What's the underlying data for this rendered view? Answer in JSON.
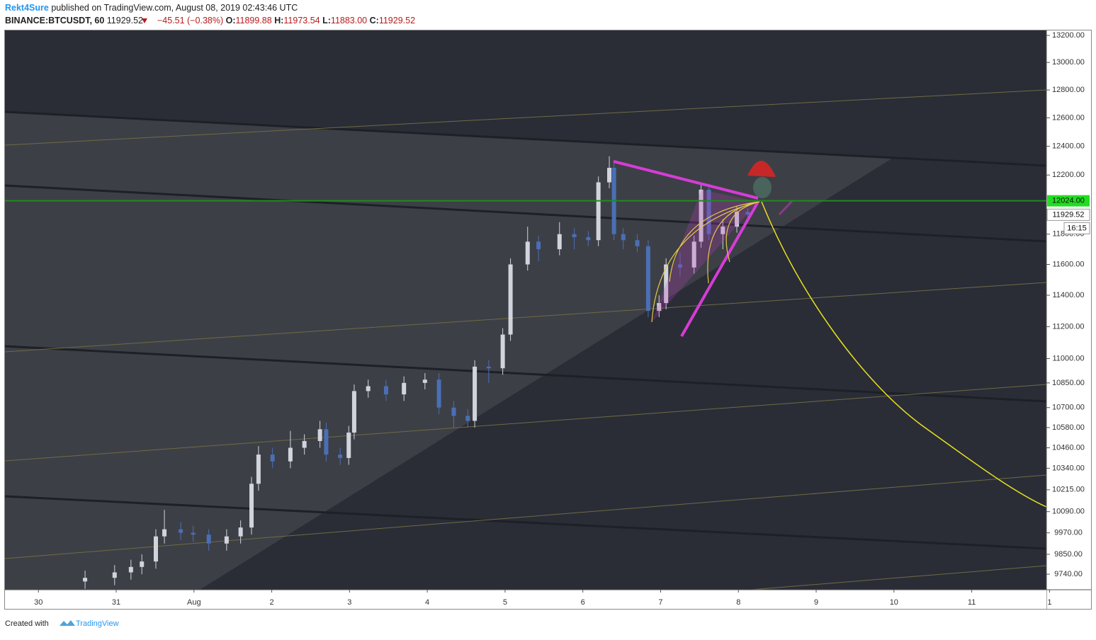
{
  "header": {
    "author": "Rekt4Sure",
    "published": "published on TradingView.com, August 08, 2019 02:43:46 UTC",
    "symbol": "BINANCE:BTCUSDT, 60",
    "last": "11929.52",
    "change": "−45.51 (−0.38%)",
    "o_label": "O:",
    "open": "11899.88",
    "h_label": "H:",
    "high": "11973.54",
    "l_label": "L:",
    "low": "11883.00",
    "c_label": "C:",
    "close": "11929.52"
  },
  "footer": {
    "created": "Created with",
    "brand": "TradingView"
  },
  "chart_data": {
    "type": "candlestick",
    "log_scale": true,
    "grid": false,
    "up_color": "#d1d4dc",
    "down_color": "#4a6fb5",
    "x": [
      0.6,
      0.98,
      1.19,
      1.33,
      1.51,
      1.62,
      1.83,
      1.99,
      2.19,
      2.42,
      2.6,
      2.74,
      2.83,
      3.01,
      3.24,
      3.42,
      3.62,
      3.7,
      3.88,
      3.99,
      4.06,
      4.24,
      4.47,
      4.7,
      4.97,
      5.15,
      5.34,
      5.52,
      5.61,
      5.79,
      5.97,
      6.07,
      6.29,
      6.43,
      6.7,
      6.89,
      7.07,
      7.2,
      7.34,
      7.4,
      7.52,
      7.7,
      7.84,
      7.98,
      8.07,
      8.25,
      8.43,
      8.52,
      8.62,
      8.8,
      8.98,
      9.12
    ],
    "open": [
      9700,
      9720,
      9750,
      9780,
      9810,
      9950,
      9990,
      9970,
      9960,
      9910,
      9950,
      10000,
      10250,
      10420,
      10380,
      10460,
      10500,
      10570,
      10420,
      10400,
      10550,
      10800,
      10830,
      10780,
      10850,
      10870,
      10700,
      10650,
      10620,
      10950,
      10940,
      11150,
      11600,
      11750,
      11700,
      11800,
      11780,
      11760,
      12150,
      12250,
      11800,
      11760,
      11720,
      11300,
      11350,
      11600,
      11580,
      11750,
      12100,
      11800,
      11850,
      11950
    ],
    "high": [
      9760,
      9790,
      9820,
      9850,
      9990,
      10100,
      10030,
      10010,
      9990,
      9990,
      10040,
      10290,
      10470,
      10460,
      10560,
      10540,
      10620,
      10610,
      10460,
      10590,
      10840,
      10870,
      10870,
      10890,
      10910,
      10910,
      10740,
      10690,
      10990,
      10990,
      11190,
      11640,
      11850,
      11790,
      11880,
      11840,
      11820,
      12190,
      12330,
      12290,
      11840,
      11800,
      11760,
      11400,
      11640,
      11680,
      11790,
      12140,
      12140,
      11900,
      11990,
      11975
    ],
    "low": [
      9660,
      9680,
      9710,
      9740,
      9770,
      9910,
      9930,
      9920,
      9870,
      9870,
      9910,
      9960,
      10210,
      10340,
      10340,
      10420,
      10460,
      10380,
      10360,
      10360,
      10510,
      10760,
      10740,
      10740,
      10810,
      10660,
      10580,
      10580,
      10580,
      10850,
      10900,
      11110,
      11560,
      11620,
      11660,
      11700,
      11720,
      11720,
      12110,
      11760,
      11700,
      11680,
      11260,
      11260,
      11310,
      11520,
      11540,
      11710,
      11760,
      11700,
      11810,
      11883
    ],
    "close": [
      9720,
      9750,
      9780,
      9810,
      9950,
      9990,
      9970,
      9960,
      9910,
      9950,
      10000,
      10250,
      10420,
      10380,
      10460,
      10500,
      10570,
      10420,
      10400,
      10550,
      10800,
      10830,
      10780,
      10850,
      10870,
      10700,
      10650,
      10620,
      10950,
      10940,
      11150,
      11600,
      11750,
      11700,
      11800,
      11780,
      11760,
      12150,
      12250,
      11800,
      11760,
      11720,
      11300,
      11350,
      11600,
      11580,
      11750,
      12100,
      11800,
      11850,
      11950,
      11930
    ],
    "xlim": [
      -0.43,
      12.96
    ],
    "xticks": [
      {
        "value": 0,
        "label": "30"
      },
      {
        "value": 1,
        "label": "31"
      },
      {
        "value": 2,
        "label": "Aug"
      },
      {
        "value": 3,
        "label": "2"
      },
      {
        "value": 4,
        "label": "3"
      },
      {
        "value": 5,
        "label": "4"
      },
      {
        "value": 6,
        "label": "5"
      },
      {
        "value": 7,
        "label": "6"
      },
      {
        "value": 8,
        "label": "7"
      },
      {
        "value": 9,
        "label": "8"
      },
      {
        "value": 10,
        "label": "9"
      },
      {
        "value": 11,
        "label": "10"
      },
      {
        "value": 12,
        "label": "11"
      },
      {
        "value": 13,
        "label": "1"
      }
    ],
    "ylim": [
      9655,
      13237
    ],
    "yticks": [
      {
        "value": 13200,
        "label": "13200.00"
      },
      {
        "value": 13000,
        "label": "13000.00"
      },
      {
        "value": 12800,
        "label": "12800.00"
      },
      {
        "value": 12600,
        "label": "12600.00"
      },
      {
        "value": 12400,
        "label": "12400.00"
      },
      {
        "value": 12200,
        "label": "12200.00"
      },
      {
        "value": 11800,
        "label": "11800.00"
      },
      {
        "value": 11600,
        "label": "11600.00"
      },
      {
        "value": 11400,
        "label": "11400.00"
      },
      {
        "value": 11200,
        "label": "11200.00"
      },
      {
        "value": 11000,
        "label": "11000.00"
      },
      {
        "value": 10850,
        "label": "10850.00"
      },
      {
        "value": 10700,
        "label": "10700.00"
      },
      {
        "value": 10580,
        "label": "10580.00"
      },
      {
        "value": 10460,
        "label": "10460.00"
      },
      {
        "value": 10340,
        "label": "10340.00"
      },
      {
        "value": 10215,
        "label": "10215.00"
      },
      {
        "value": 10090,
        "label": "10090.00"
      },
      {
        "value": 9970,
        "label": "9970.00"
      },
      {
        "value": 9850,
        "label": "9850.00"
      },
      {
        "value": 9740,
        "label": "9740.00"
      }
    ],
    "price_lines": [
      {
        "value": 12024,
        "label": "12024.00",
        "color": "#1e8c1e",
        "box": "#22dd22"
      },
      {
        "value": 11929.52,
        "label": "11929.52",
        "color": "#ffffff",
        "box": "#ffffff"
      }
    ],
    "countdown": "16:15"
  }
}
